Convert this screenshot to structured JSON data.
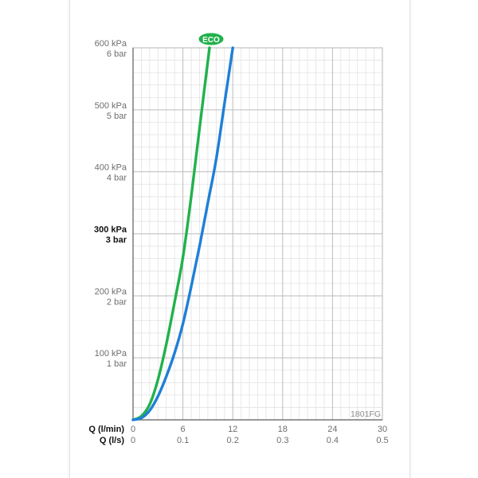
{
  "chart_data": {
    "type": "line",
    "code": "1801FG",
    "eco_badge": "ECO",
    "y_ticks": [
      {
        "value": 100,
        "kpa": "100 kPa",
        "bar": "1 bar",
        "bold": false
      },
      {
        "value": 200,
        "kpa": "200 kPa",
        "bar": "2 bar",
        "bold": false
      },
      {
        "value": 300,
        "kpa": "300 kPa",
        "bar": "3 bar",
        "bold": true
      },
      {
        "value": 400,
        "kpa": "400 kPa",
        "bar": "4 bar",
        "bold": false
      },
      {
        "value": 500,
        "kpa": "500 kPa",
        "bar": "5 bar",
        "bold": false
      },
      {
        "value": 600,
        "kpa": "600 kPa",
        "bar": "6 bar",
        "bold": false
      }
    ],
    "ylim": [
      0,
      600
    ],
    "xlim": [
      0,
      30
    ],
    "x_axis_lmin": {
      "label": "Q (l/min)",
      "ticks": [
        0,
        6,
        12,
        18,
        24,
        30
      ]
    },
    "x_axis_ls": {
      "label": "Q (l/s)",
      "ticks": [
        "0",
        "0.1",
        "0.2",
        "0.3",
        "0.4",
        "0.5"
      ]
    },
    "grid": true,
    "series": [
      {
        "color": "#22b14c",
        "x": [
          0,
          1,
          2,
          3,
          4,
          5,
          6,
          7,
          8,
          9.2
        ],
        "y": [
          0,
          6,
          25,
          65,
          122,
          190,
          262,
          360,
          470,
          600
        ]
      },
      {
        "color": "#1f7fd6",
        "x": [
          0,
          1,
          2,
          3,
          4,
          5,
          6,
          7,
          8,
          9,
          10,
          11,
          12
        ],
        "y": [
          0,
          3,
          15,
          38,
          70,
          108,
          155,
          215,
          280,
          350,
          420,
          510,
          600
        ]
      }
    ]
  }
}
